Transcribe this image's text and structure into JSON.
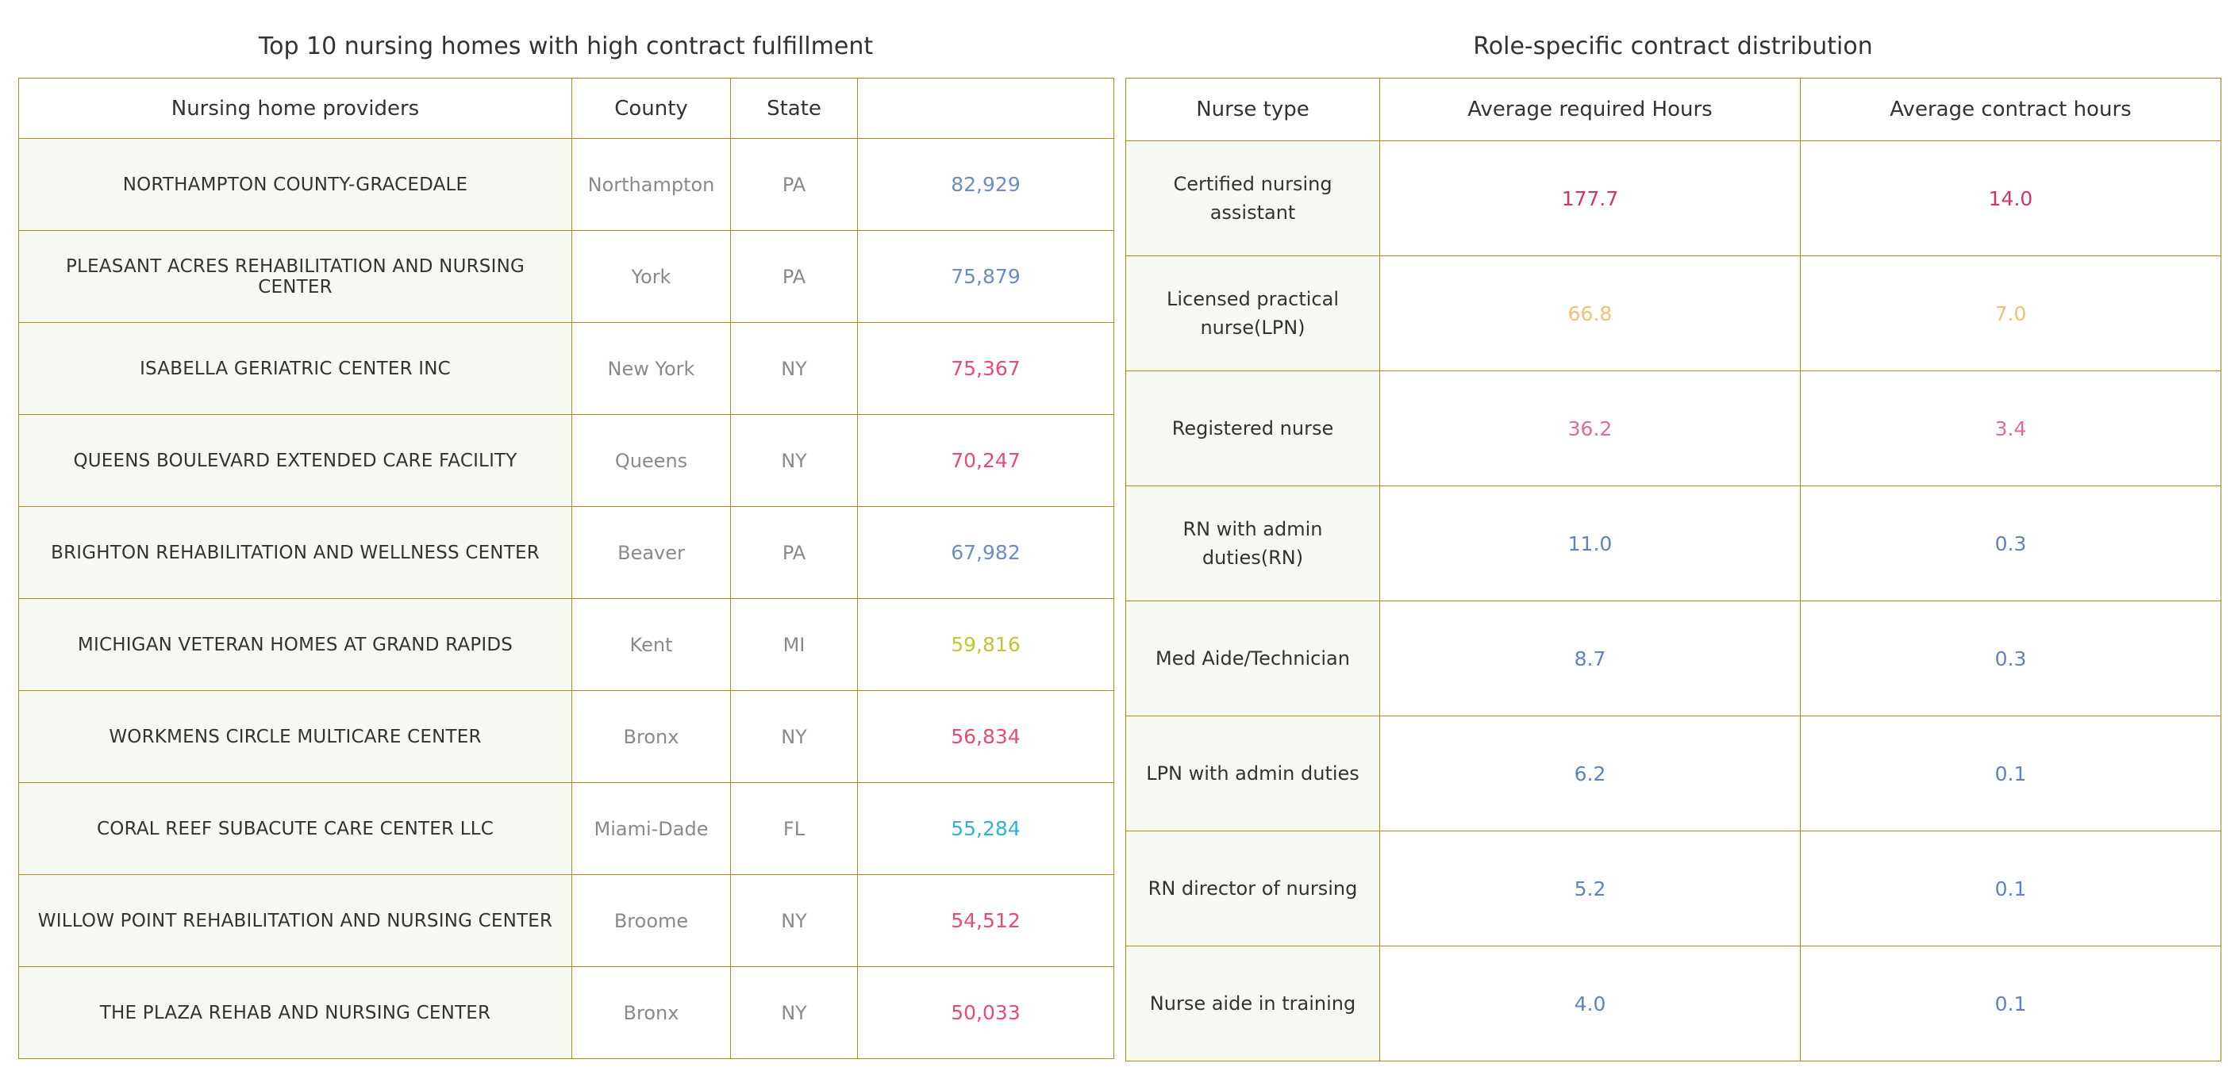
{
  "left_panel": {
    "title": "Top 10 nursing homes with high contract fulfillment",
    "headers": [
      "Nursing home providers",
      "County",
      "State",
      ""
    ],
    "rows": [
      {
        "name": "NORTHAMPTON COUNTY-GRACEDALE",
        "county": "Northampton",
        "state": "PA",
        "value": "82,929",
        "color_class": "c-blue"
      },
      {
        "name": "PLEASANT ACRES REHABILITATION AND NURSING CENTER",
        "county": "York",
        "state": "PA",
        "value": "75,879",
        "color_class": "c-blue"
      },
      {
        "name": "ISABELLA GERIATRIC CENTER INC",
        "county": "New York",
        "state": "NY",
        "value": "75,367",
        "color_class": "c-red"
      },
      {
        "name": "QUEENS BOULEVARD EXTENDED CARE FACILITY",
        "county": "Queens",
        "state": "NY",
        "value": "70,247",
        "color_class": "c-red"
      },
      {
        "name": "BRIGHTON REHABILITATION AND WELLNESS CENTER",
        "county": "Beaver",
        "state": "PA",
        "value": "67,982",
        "color_class": "c-blue"
      },
      {
        "name": "MICHIGAN VETERAN HOMES AT GRAND RAPIDS",
        "county": "Kent",
        "state": "MI",
        "value": "59,816",
        "color_class": "c-olive"
      },
      {
        "name": "WORKMENS CIRCLE MULTICARE CENTER",
        "county": "Bronx",
        "state": "NY",
        "value": "56,834",
        "color_class": "c-red"
      },
      {
        "name": "CORAL REEF SUBACUTE CARE CENTER LLC",
        "county": "Miami-Dade",
        "state": "FL",
        "value": "55,284",
        "color_class": "c-cyan"
      },
      {
        "name": "WILLOW POINT REHABILITATION AND NURSING CENTER",
        "county": "Broome",
        "state": "NY",
        "value": "54,512",
        "color_class": "c-red"
      },
      {
        "name": "THE PLAZA REHAB AND NURSING CENTER",
        "county": "Bronx",
        "state": "NY",
        "value": "50,033",
        "color_class": "c-red"
      }
    ]
  },
  "right_panel": {
    "title": "Role-specific contract distribution",
    "headers": [
      "Nurse type",
      "Average required Hours",
      "Average contract hours"
    ],
    "rows": [
      {
        "type": "Certified nursing assistant",
        "required": "177.7",
        "contract": "14.0",
        "color_class": "c-crimson"
      },
      {
        "type": "Licensed practical nurse(LPN)",
        "required": "66.8",
        "contract": "7.0",
        "color_class": "c-orange"
      },
      {
        "type": "Registered nurse",
        "required": "36.2",
        "contract": "3.4",
        "color_class": "c-pink"
      },
      {
        "type": "RN with admin duties(RN)",
        "required": "11.0",
        "contract": "0.3",
        "color_class": "c-steel"
      },
      {
        "type": "Med Aide/Technician",
        "required": "8.7",
        "contract": "0.3",
        "color_class": "c-steel"
      },
      {
        "type": "LPN with admin duties",
        "required": "6.2",
        "contract": "0.1",
        "color_class": "c-steel"
      },
      {
        "type": "RN director of nursing",
        "required": "5.2",
        "contract": "0.1",
        "color_class": "c-steel"
      },
      {
        "type": "Nurse aide in training",
        "required": "4.0",
        "contract": "0.1",
        "color_class": "c-steel"
      }
    ]
  },
  "colors": {
    "border": "#a88f17",
    "row_tint": "#f6f9f1",
    "blue": "#6a8ec3",
    "red": "#e64d70",
    "crimson": "#d6336b",
    "olive": "#c4c437",
    "cyan": "#2fb3d1",
    "orange": "#f2c078",
    "pink": "#e06aa0",
    "steel": "#6183bd"
  }
}
